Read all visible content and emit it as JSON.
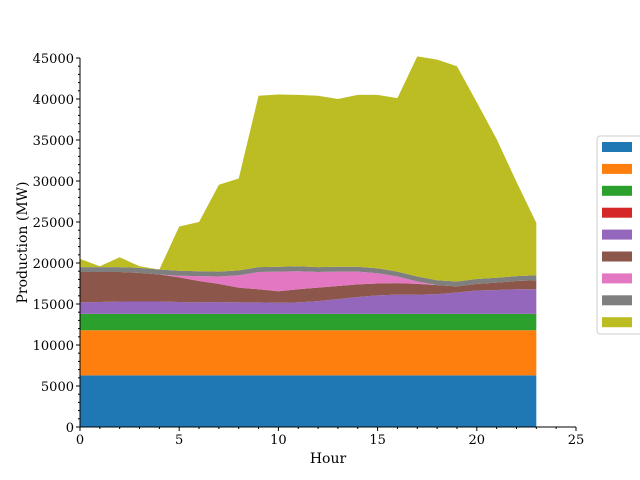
{
  "chart_data": {
    "type": "area",
    "title": "",
    "xlabel": "Hour",
    "ylabel": "Production (MW)",
    "xlim": [
      0,
      25
    ],
    "ylim": [
      0,
      45000
    ],
    "grid": false,
    "legend_position": "right",
    "x_ticks": [
      "0",
      "5",
      "10",
      "15",
      "20",
      "25"
    ],
    "y_ticks": [
      "0",
      "5000",
      "10000",
      "15000",
      "20000",
      "25000",
      "30000",
      "35000",
      "40000",
      "45000"
    ],
    "x": [
      0,
      1,
      2,
      3,
      4,
      5,
      6,
      7,
      8,
      9,
      10,
      11,
      12,
      13,
      14,
      15,
      16,
      17,
      18,
      19,
      20,
      21,
      22,
      23
    ],
    "series": [
      {
        "color": "#1f77b4",
        "values": [
          6300,
          6300,
          6300,
          6300,
          6300,
          6300,
          6300,
          6300,
          6300,
          6300,
          6300,
          6300,
          6300,
          6300,
          6300,
          6300,
          6300,
          6300,
          6300,
          6300,
          6300,
          6300,
          6300,
          6300
        ]
      },
      {
        "color": "#ff7f0e",
        "values": [
          5500,
          5500,
          5500,
          5500,
          5500,
          5500,
          5500,
          5500,
          5500,
          5500,
          5500,
          5500,
          5500,
          5500,
          5500,
          5500,
          5500,
          5500,
          5500,
          5500,
          5500,
          5500,
          5500,
          5500
        ]
      },
      {
        "color": "#2ca02c",
        "values": [
          2000,
          2000,
          2000,
          2000,
          2000,
          2000,
          2000,
          2000,
          2000,
          2000,
          2000,
          2000,
          2000,
          2000,
          2000,
          2000,
          2000,
          2000,
          2000,
          2000,
          2000,
          2000,
          2000,
          2000
        ]
      },
      {
        "color": "#d62728",
        "values": [
          0,
          0,
          0,
          0,
          0,
          0,
          0,
          0,
          0,
          0,
          0,
          0,
          0,
          0,
          0,
          0,
          0,
          0,
          0,
          0,
          0,
          0,
          0,
          0
        ]
      },
      {
        "color": "#9467bd",
        "values": [
          1400,
          1450,
          1500,
          1500,
          1500,
          1450,
          1400,
          1450,
          1400,
          1400,
          1350,
          1400,
          1550,
          1800,
          2050,
          2250,
          2350,
          2350,
          2400,
          2600,
          2850,
          2900,
          3000,
          3000
        ]
      },
      {
        "color": "#8c564b",
        "values": [
          3700,
          3650,
          3600,
          3500,
          3300,
          3000,
          2600,
          2200,
          1800,
          1600,
          1400,
          1600,
          1650,
          1600,
          1550,
          1450,
          1400,
          1300,
          1100,
          750,
          800,
          900,
          1000,
          1100
        ]
      },
      {
        "color": "#e377c2",
        "values": [
          0,
          0,
          0,
          0,
          0,
          200,
          600,
          900,
          1500,
          2100,
          2400,
          2200,
          1900,
          1750,
          1550,
          1250,
          800,
          300,
          0,
          0,
          0,
          0,
          0,
          0
        ]
      },
      {
        "color": "#7f7f7f",
        "values": [
          600,
          600,
          600,
          600,
          600,
          600,
          600,
          600,
          600,
          600,
          600,
          600,
          600,
          600,
          600,
          600,
          600,
          600,
          600,
          600,
          600,
          600,
          600,
          600
        ]
      },
      {
        "color": "#bcbd22",
        "values": [
          1000,
          100,
          1200,
          200,
          0,
          5400,
          6000,
          10600,
          11200,
          20900,
          21000,
          20900,
          20900,
          20450,
          20950,
          21150,
          21150,
          26850,
          26900,
          26250,
          21550,
          16900,
          11500,
          6400
        ]
      }
    ]
  }
}
